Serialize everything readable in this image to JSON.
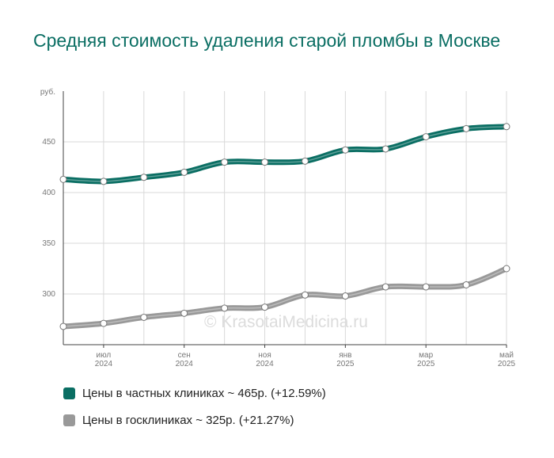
{
  "chart_data": {
    "type": "line",
    "title": "Средняя стоимость удаления старой пломбы в Москве",
    "y_unit_label": "руб.",
    "ylim": [
      250,
      500
    ],
    "y_ticks": [
      "300",
      "350",
      "400",
      "450"
    ],
    "y_tick_values": [
      300,
      350,
      400,
      450
    ],
    "x_tick_labels": [
      {
        "month": "июл",
        "year": "2024"
      },
      {
        "month": "сен",
        "year": "2024"
      },
      {
        "month": "ноя",
        "year": "2024"
      },
      {
        "month": "янв",
        "year": "2025"
      },
      {
        "month": "мар",
        "year": "2025"
      },
      {
        "month": "май",
        "year": "2025"
      }
    ],
    "x": [
      "2024-06",
      "2024-07",
      "2024-08",
      "2024-09",
      "2024-10",
      "2024-11",
      "2024-12",
      "2025-01",
      "2025-02",
      "2025-03",
      "2025-04",
      "2025-05"
    ],
    "grid": true,
    "legend_position": "bottom-left",
    "series": [
      {
        "name": "Цены в частных клиниках ~ 465р. (+12.59%)",
        "color": "#0a6e63",
        "values": [
          413,
          411,
          415,
          420,
          430,
          430,
          431,
          442,
          443,
          455,
          463,
          465
        ]
      },
      {
        "name": "Цены в госклиниках ~ 325р. (+21.27%)",
        "color": "#999999",
        "values": [
          268,
          271,
          277,
          281,
          286,
          287,
          299,
          298,
          307,
          307,
          309,
          325
        ]
      }
    ],
    "watermark": "© KrasotaiMedicina.ru"
  }
}
